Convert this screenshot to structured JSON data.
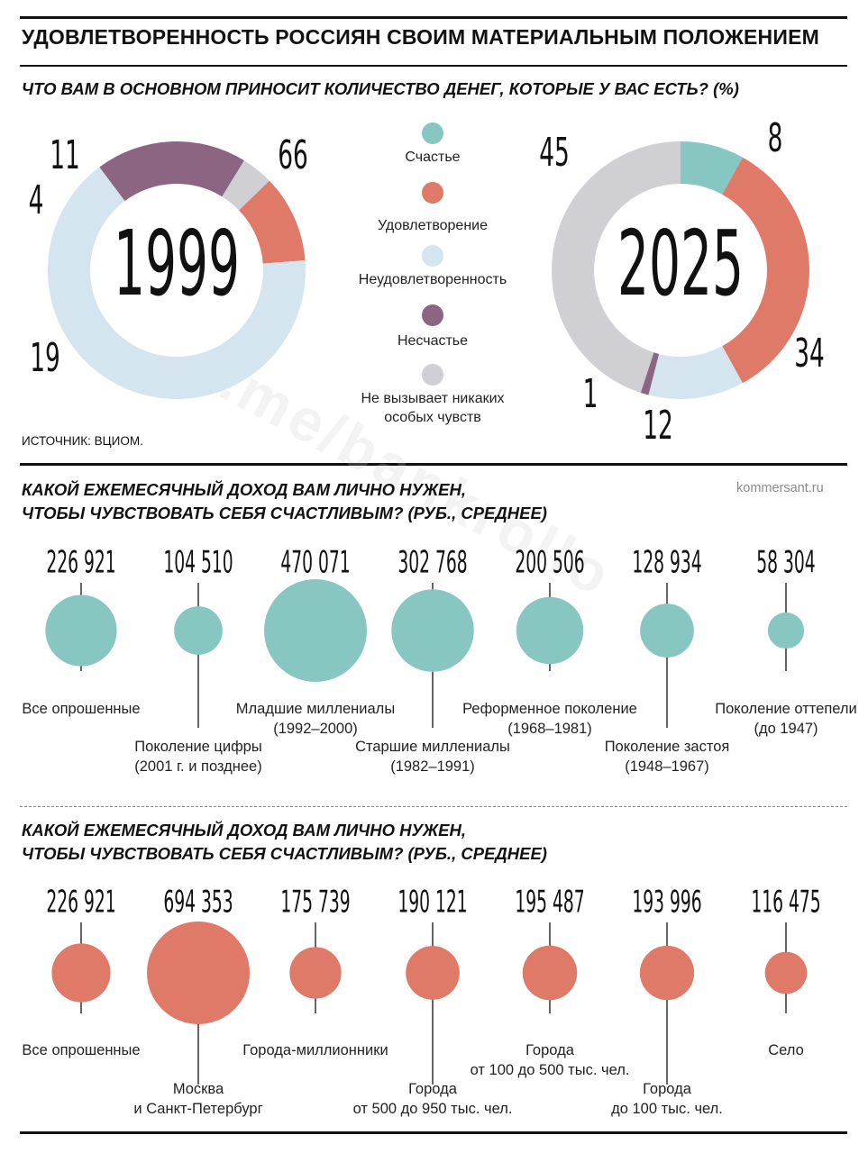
{
  "title": "УДОВЛЕТВОРЕННОСТЬ РОССИЯН СВОИМ МАТЕРИАЛЬНЫМ ПОЛОЖЕНИЕМ",
  "section1": {
    "question": "ЧТО ВАМ В ОСНОВНОМ ПРИНОСИТ КОЛИЧЕСТВО ДЕНЕГ, КОТОРЫЕ У ВАС ЕСТЬ? (%)",
    "source": "ИСТОЧНИК: ВЦИОМ.",
    "legend": [
      {
        "label": "Счастье",
        "color": "#88c7c1"
      },
      {
        "label": "Удовлетворение",
        "color": "#e07a68"
      },
      {
        "label": "Неудовлетворенность",
        "color": "#d4e5f0"
      },
      {
        "label": "Несчастье",
        "color": "#8c6583"
      },
      {
        "label": "Не вызывает никаких особых чувств",
        "color": "#cfcfd4"
      }
    ]
  },
  "section2": {
    "question_line1": "КАКОЙ ЕЖЕМЕСЯЧНЫЙ ДОХОД ВАМ ЛИЧНО НУЖЕН,",
    "question_line2": "ЧТОБЫ ЧУВСТВОВАТЬ СЕБЯ СЧАСТЛИВЫМ? (РУБ., СРЕДНЕЕ)",
    "site": "kommersant.ru"
  },
  "section3": {
    "question_line1": "КАКОЙ ЕЖЕМЕСЯЧНЫЙ ДОХОД ВАМ ЛИЧНО НУЖЕН,",
    "question_line2": "ЧТОБЫ ЧУВСТВОВАТЬ СЕБЯ СЧАСТЛИВЫМ? (РУБ., СРЕДНЕЕ)"
  },
  "watermark": "t.me/bankrollo",
  "chart_data": [
    {
      "type": "pie",
      "variant": "donut",
      "center_label": "1999",
      "labels": [
        "Счастье",
        "Удовлетворение",
        "Неудовлетворенность",
        "Несчастье",
        "Не вызывает никаких особых чувств"
      ],
      "values": [
        0,
        11,
        66,
        19,
        4
      ],
      "value_labels": [
        "",
        "11",
        "66",
        "19",
        "4"
      ],
      "colors": [
        "#88c7c1",
        "#e07a68",
        "#d4e5f0",
        "#8c6583",
        "#cfcfd4"
      ]
    },
    {
      "type": "pie",
      "variant": "donut",
      "center_label": "2025",
      "labels": [
        "Счастье",
        "Удовлетворение",
        "Неудовлетворенность",
        "Несчастье",
        "Не вызывает никаких особых чувств"
      ],
      "values": [
        8,
        34,
        12,
        1,
        45
      ],
      "value_labels": [
        "8",
        "34",
        "12",
        "1",
        "45"
      ],
      "colors": [
        "#88c7c1",
        "#e07a68",
        "#d4e5f0",
        "#8c6583",
        "#cfcfd4"
      ]
    },
    {
      "type": "scatter",
      "variant": "bubble",
      "color": "#88c7c1",
      "categories": [
        {
          "label": "Все опрошенные",
          "sub": "",
          "value": 226921,
          "value_label": "226 921",
          "label_pos": "above"
        },
        {
          "label": "Поколение цифры",
          "sub": "(2001 г. и позднее)",
          "value": 104510,
          "value_label": "104 510",
          "label_pos": "below"
        },
        {
          "label": "Младшие миллениалы",
          "sub": "(1992–2000)",
          "value": 470071,
          "value_label": "470 071",
          "label_pos": "above"
        },
        {
          "label": "Старшие миллениалы",
          "sub": "(1982–1991)",
          "value": 302768,
          "value_label": "302 768",
          "label_pos": "below"
        },
        {
          "label": "Реформенное поколение",
          "sub": "(1968–1981)",
          "value": 200506,
          "value_label": "200 506",
          "label_pos": "above"
        },
        {
          "label": "Поколение застоя",
          "sub": "(1948–1967)",
          "value": 128934,
          "value_label": "128 934",
          "label_pos": "below"
        },
        {
          "label": "Поколение оттепели",
          "sub": "(до 1947)",
          "value": 58304,
          "value_label": "58 304",
          "label_pos": "above"
        }
      ]
    },
    {
      "type": "scatter",
      "variant": "bubble",
      "color": "#e07a68",
      "categories": [
        {
          "label": "Все опрошенные",
          "sub": "",
          "value": 226921,
          "value_label": "226 921",
          "label_pos": "above"
        },
        {
          "label": "Москва",
          "sub": "и Санкт-Петербург",
          "value": 694353,
          "value_label": "694 353",
          "label_pos": "below"
        },
        {
          "label": "Города-миллионники",
          "sub": "",
          "value": 175739,
          "value_label": "175 739",
          "label_pos": "above"
        },
        {
          "label": "Города",
          "sub": "от 500 до 950 тыс. чел.",
          "value": 190121,
          "value_label": "190 121",
          "label_pos": "below"
        },
        {
          "label": "Города",
          "sub": "от 100 до 500 тыс. чел.",
          "value": 195487,
          "value_label": "195 487",
          "label_pos": "above"
        },
        {
          "label": "Города",
          "sub": "до 100 тыс. чел.",
          "value": 193996,
          "value_label": "193 996",
          "label_pos": "below"
        },
        {
          "label": "Село",
          "sub": "",
          "value": 116475,
          "value_label": "116 475",
          "label_pos": "above"
        }
      ]
    }
  ]
}
